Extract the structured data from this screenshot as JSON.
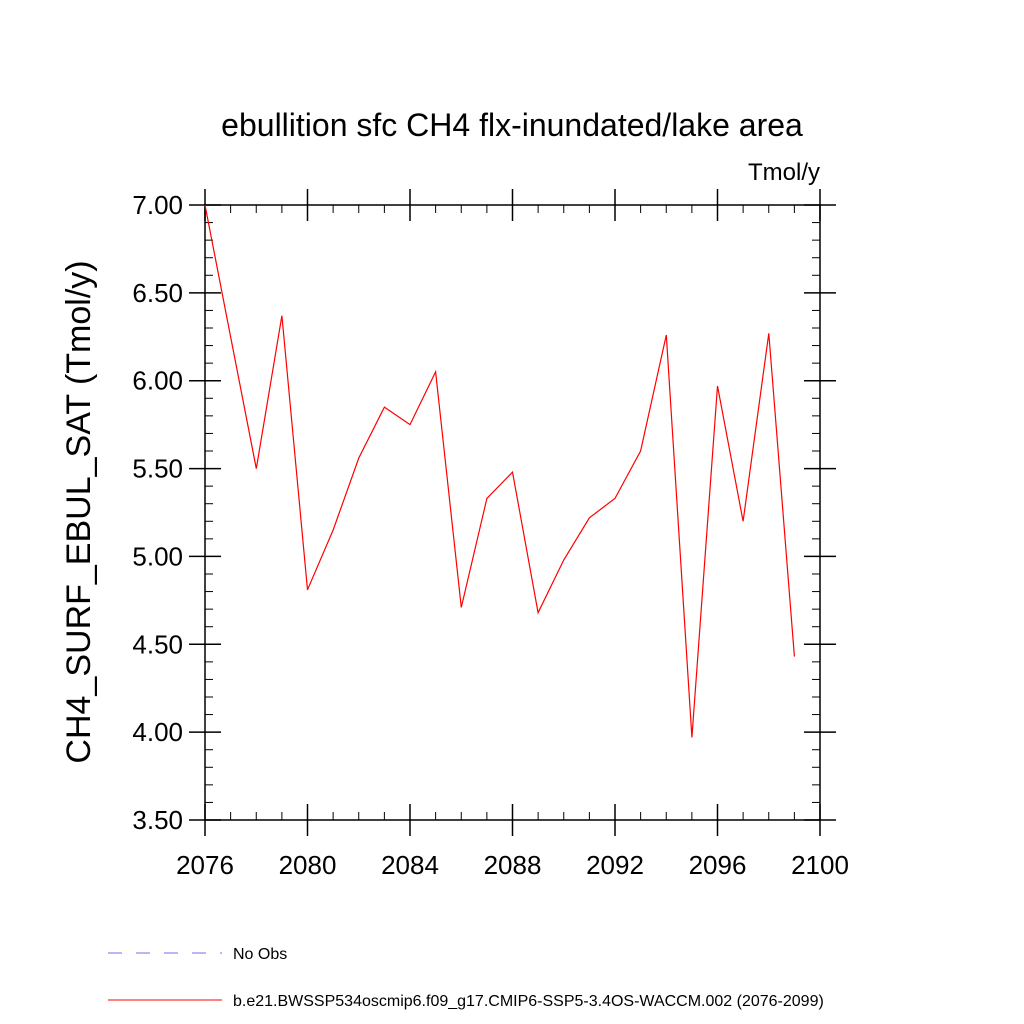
{
  "chart_data": {
    "type": "line",
    "title": "ebullition sfc CH4 flx-inundated/lake area",
    "units": "Tmol/y",
    "ylabel": "CH4_SURF_EBUL_SAT  (Tmol/y)",
    "xlabel": "",
    "xlim": [
      2076,
      2100
    ],
    "ylim": [
      3.5,
      7.0
    ],
    "x_ticks": [
      2076,
      2080,
      2084,
      2088,
      2092,
      2096,
      2100
    ],
    "x_tick_labels": [
      "2076",
      "2080",
      "2084",
      "2088",
      "2092",
      "2096",
      "2100"
    ],
    "y_ticks": [
      3.5,
      4.0,
      4.5,
      5.0,
      5.5,
      6.0,
      6.5,
      7.0
    ],
    "y_tick_labels": [
      "3.50",
      "4.00",
      "4.50",
      "5.00",
      "5.50",
      "6.00",
      "6.50",
      "7.00"
    ],
    "series": [
      {
        "name": "b.e21.BWSSP534oscmip6.f09_g17.CMIP6-SSP5-3.4OS-WACCM.002 (2076-2099)",
        "color": "#ff0000",
        "x": [
          2076,
          2077,
          2078,
          2079,
          2080,
          2081,
          2082,
          2083,
          2084,
          2085,
          2086,
          2087,
          2088,
          2089,
          2090,
          2091,
          2092,
          2093,
          2094,
          2095,
          2096,
          2097,
          2098,
          2099
        ],
        "y": [
          7.0,
          6.25,
          5.5,
          6.37,
          4.81,
          5.15,
          5.56,
          5.85,
          5.75,
          6.05,
          4.71,
          5.33,
          5.48,
          4.68,
          4.98,
          5.22,
          5.33,
          5.6,
          6.26,
          3.97,
          5.97,
          5.2,
          6.27,
          4.43
        ]
      }
    ],
    "legend": [
      {
        "label": "No Obs",
        "color": "#7b68ee",
        "style": "dashed"
      },
      {
        "label": "b.e21.BWSSP534oscmip6.f09_g17.CMIP6-SSP5-3.4OS-WACCM.002 (2076-2099)",
        "color": "#ff0000",
        "style": "solid"
      }
    ]
  }
}
